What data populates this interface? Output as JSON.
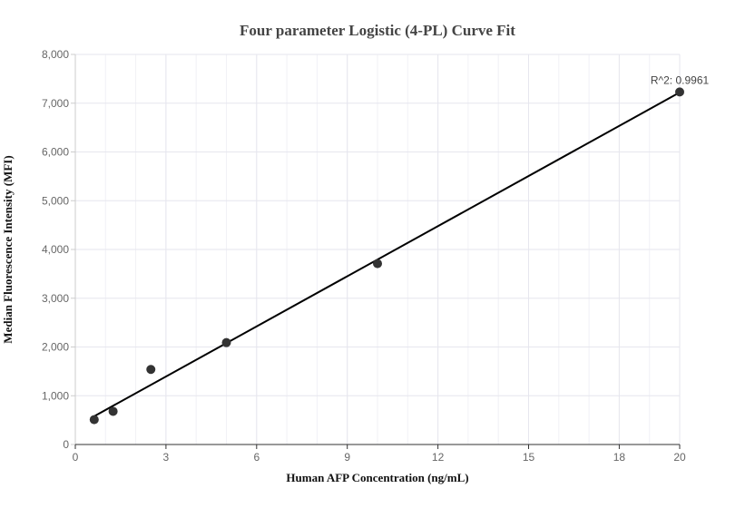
{
  "chart_data": {
    "type": "scatter",
    "title": "Four parameter Logistic (4-PL) Curve Fit",
    "xlabel": "Human AFP Concentration (ng/mL)",
    "ylabel": "Median Fluorescence Intensity (MFI)",
    "xlim": [
      0,
      20
    ],
    "ylim": [
      0,
      8000
    ],
    "x_ticks": [
      0,
      3,
      6,
      9,
      12,
      15,
      18,
      20
    ],
    "y_ticks": [
      0,
      1000,
      2000,
      3000,
      4000,
      5000,
      6000,
      7000,
      8000
    ],
    "x_tick_labels": [
      "0",
      "3",
      "6",
      "9",
      "12",
      "15",
      "18",
      "20"
    ],
    "y_tick_labels": [
      "0",
      "1,000",
      "2,000",
      "3,000",
      "4,000",
      "5,000",
      "6,000",
      "7,000",
      "8,000"
    ],
    "grid": true,
    "series": [
      {
        "kind": "points",
        "x": [
          0.625,
          1.25,
          2.5,
          5,
          10,
          20
        ],
        "y": [
          510,
          680,
          1540,
          2090,
          3710,
          7230
        ]
      },
      {
        "kind": "fit-line",
        "x": [
          0.625,
          20
        ],
        "y": [
          580,
          7220
        ]
      }
    ],
    "annotations": [
      {
        "text": "R^2: 0.9961",
        "x": 20,
        "y": 7230
      }
    ],
    "colors": {
      "points": "#333333",
      "line": "#000000",
      "grid": "#e6e6ee",
      "axis": "#cccccc"
    }
  }
}
